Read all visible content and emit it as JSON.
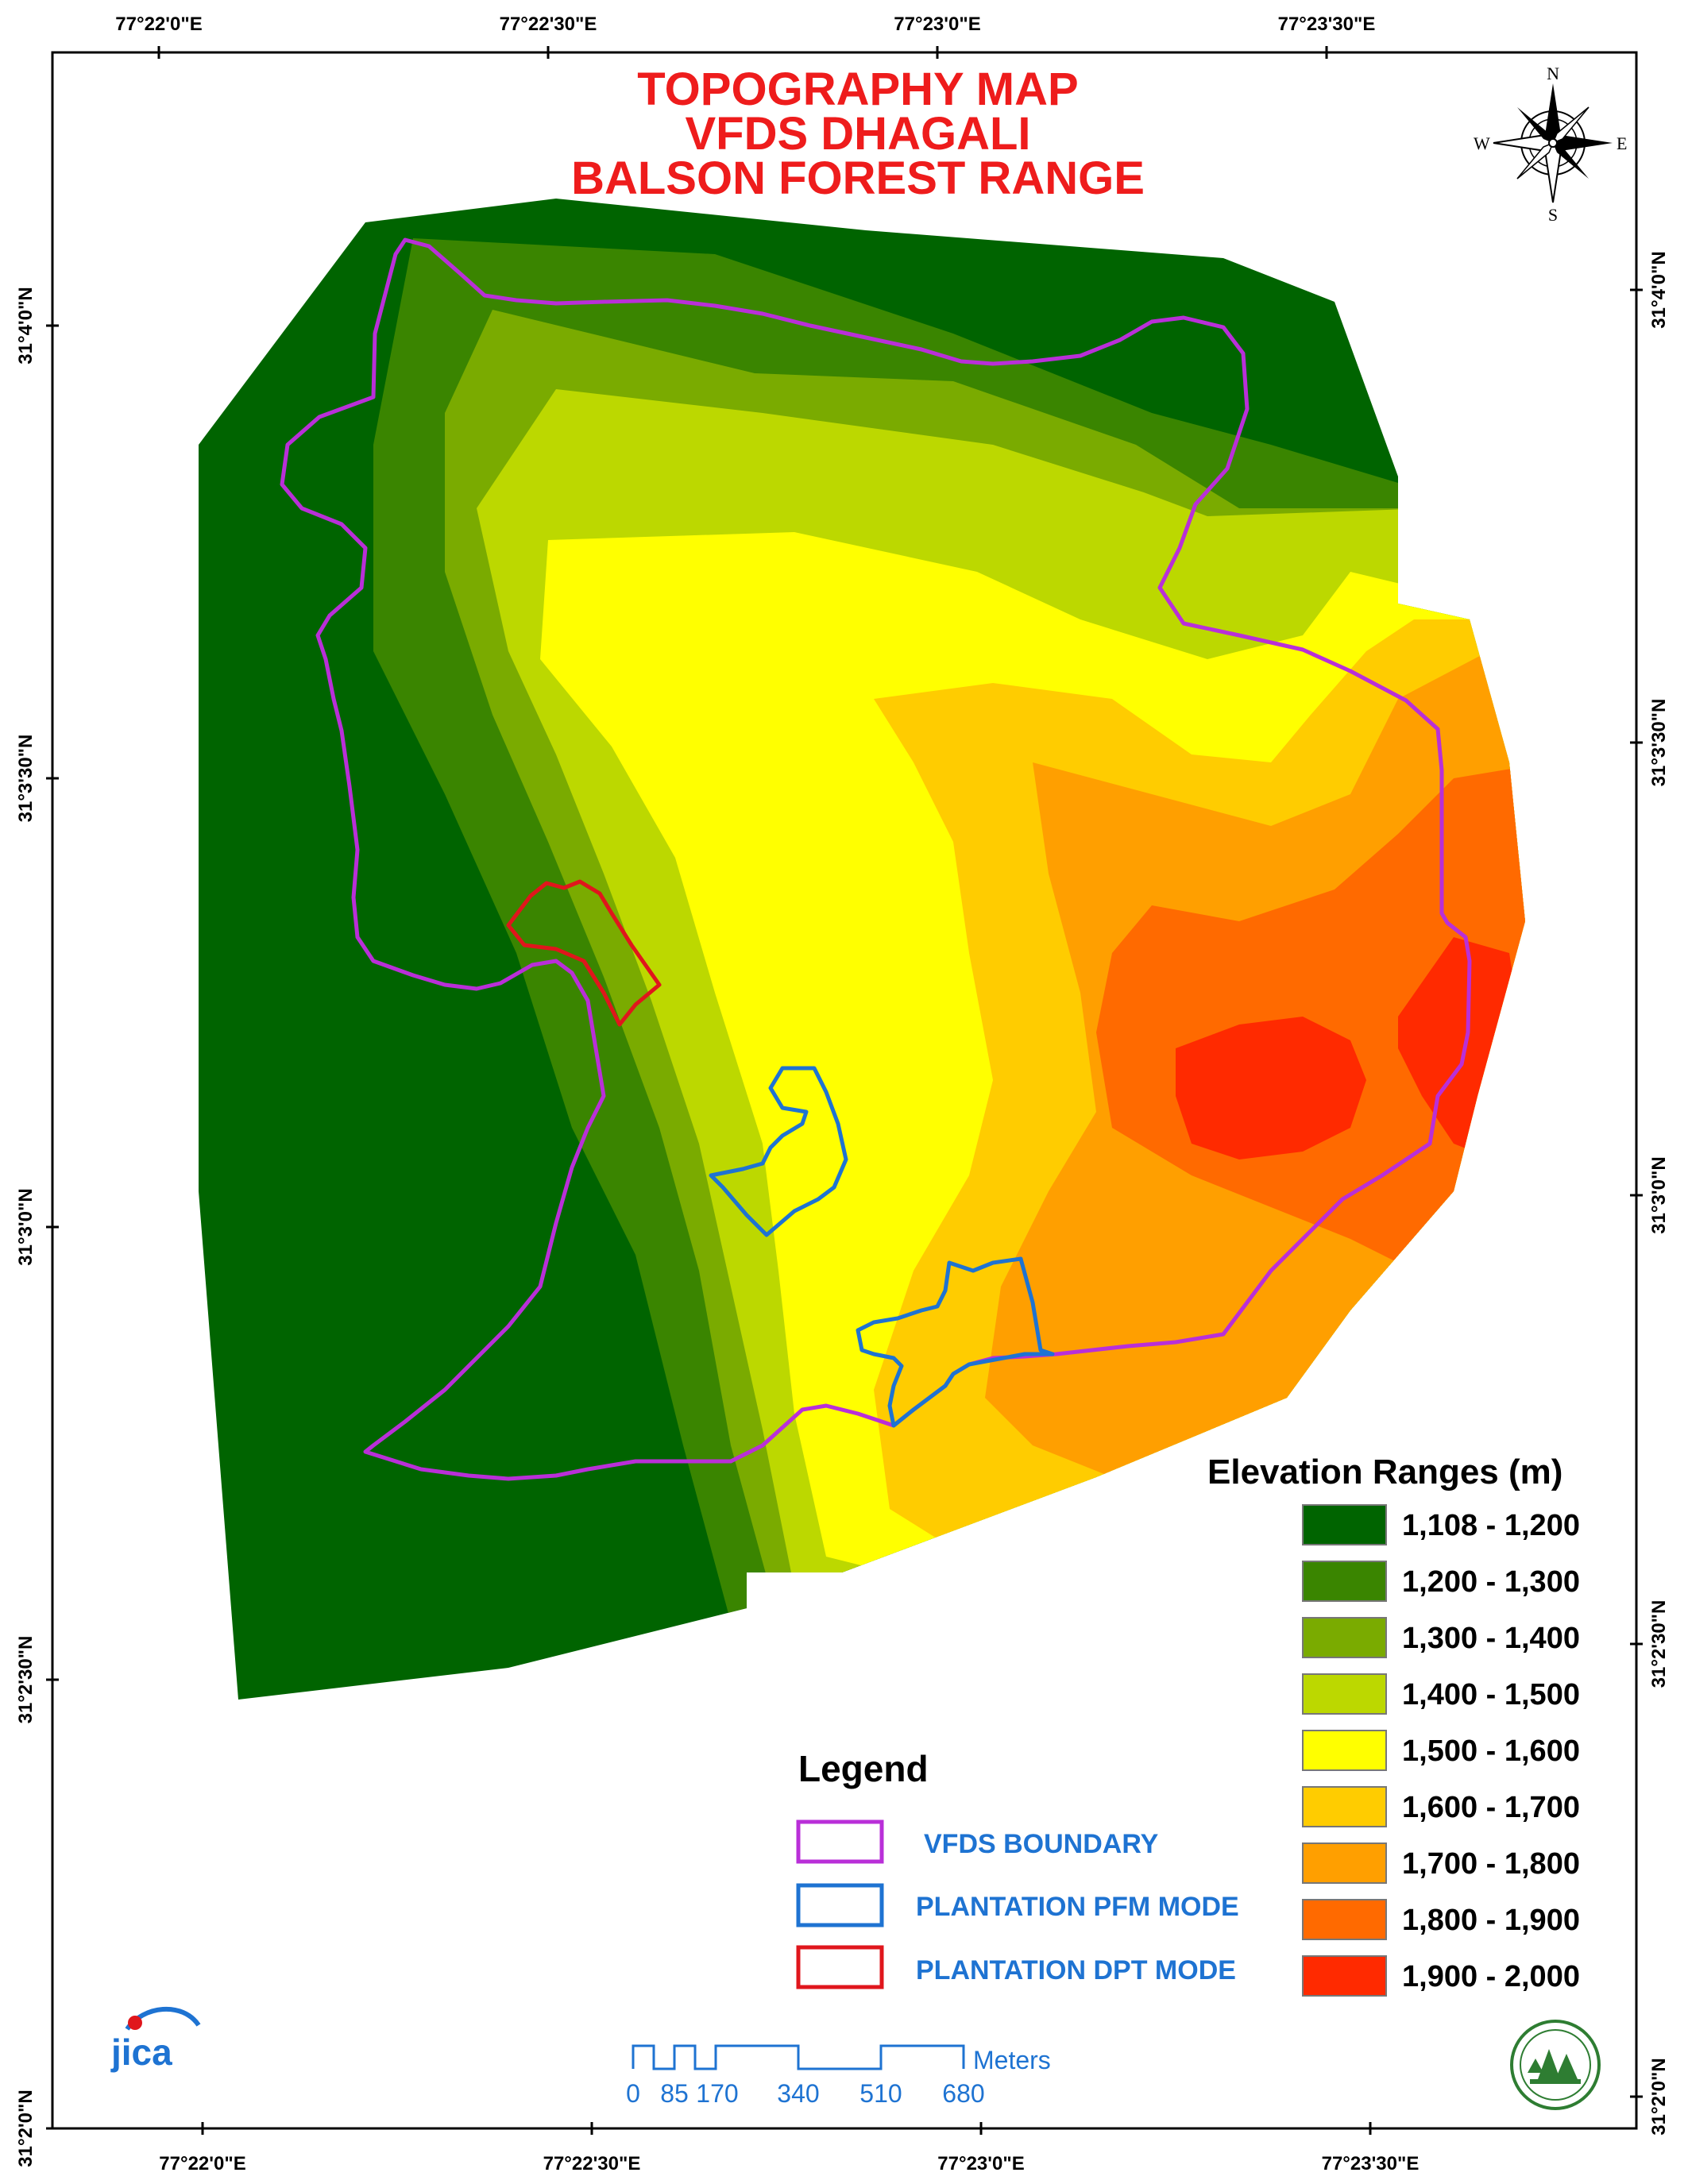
{
  "title": {
    "line1": "TOPOGRAPHY MAP",
    "line2": "VFDS DHAGALI",
    "line3": "BALSON FOREST RANGE"
  },
  "colors": {
    "title": "#ee1c1c",
    "vfds_boundary": "#b92fd8",
    "plantation_pfm": "#1e73d2",
    "plantation_dpt": "#e0161c",
    "legend_text": "#1e73d2"
  },
  "coordinates": {
    "top": [
      "77°22'0\"E",
      "77°22'30\"E",
      "77°23'0\"E",
      "77°23'30\"E"
    ],
    "bottom": [
      "77°22'0\"E",
      "77°22'30\"E",
      "77°23'0\"E",
      "77°23'30\"E"
    ],
    "left": [
      "31°4'0\"N",
      "31°3'30\"N",
      "31°3'0\"N",
      "31°2'30\"N",
      "31°2'0\"N"
    ],
    "right": [
      "31°4'0\"N",
      "31°3'30\"N",
      "31°3'0\"N",
      "31°2'30\"N",
      "31°2'0\"N"
    ]
  },
  "compass": {
    "n": "N",
    "s": "S",
    "e": "E",
    "w": "W"
  },
  "elevation": {
    "title": "Elevation Ranges (m)",
    "ranges": [
      {
        "label": "1,108 - 1,200",
        "color": "#006400"
      },
      {
        "label": "1,200 - 1,300",
        "color": "#3a8500"
      },
      {
        "label": "1,300 - 1,400",
        "color": "#7aab00"
      },
      {
        "label": "1,400 - 1,500",
        "color": "#bcd800"
      },
      {
        "label": "1,500 - 1,600",
        "color": "#ffff00"
      },
      {
        "label": "1,600 - 1,700",
        "color": "#ffcc00"
      },
      {
        "label": "1,700 - 1,800",
        "color": "#ff9f00"
      },
      {
        "label": "1,800 - 1,900",
        "color": "#ff6a00"
      },
      {
        "label": "1,900 - 2,000",
        "color": "#ff2a00"
      }
    ]
  },
  "legend": {
    "title": "Legend",
    "items": [
      {
        "label": "VFDS BOUNDARY",
        "color": "#b92fd8"
      },
      {
        "label": "PLANTATION PFM MODE",
        "color": "#1e73d2"
      },
      {
        "label": "PLANTATION DPT MODE",
        "color": "#e0161c"
      }
    ]
  },
  "scale_bar": {
    "ticks": [
      "0",
      "85",
      "170",
      "340",
      "510",
      "680"
    ],
    "unit": "Meters"
  },
  "logos": {
    "jica": "jica",
    "forest_dept": "forest-department-emblem"
  }
}
